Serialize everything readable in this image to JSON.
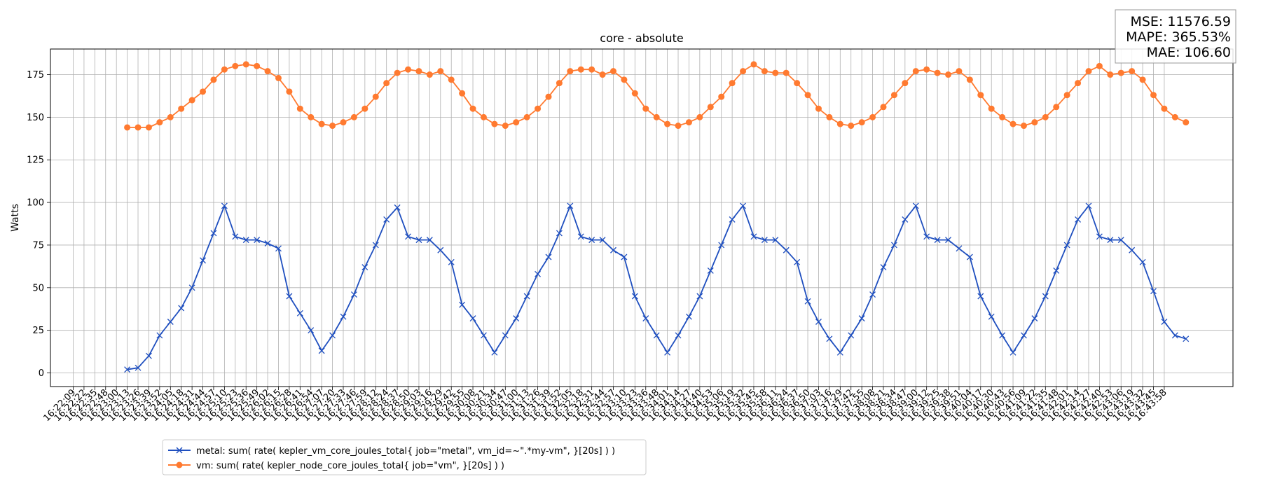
{
  "chart_data": {
    "type": "line",
    "title": "core - absolute",
    "xlabel": "",
    "ylabel": "Watts",
    "ylim": [
      -8,
      190
    ],
    "yticks": [
      0,
      25,
      50,
      75,
      100,
      125,
      150,
      175
    ],
    "grid": true,
    "legend_placement": "bottom-left, below plot",
    "x_tick_labels": [
      "16:22:09",
      "16:22:22",
      "16:22:35",
      "16:22:48",
      "16:23:00",
      "16:23:13",
      "16:23:26",
      "16:23:39",
      "16:23:52",
      "16:24:05",
      "16:24:18",
      "16:24:31",
      "16:24:44",
      "16:24:57",
      "16:25:10",
      "16:25:23",
      "16:25:36",
      "16:25:49",
      "16:26:02",
      "16:26:15",
      "16:26:28",
      "16:26:41",
      "16:26:54",
      "16:27:07",
      "16:27:20",
      "16:27:33",
      "16:27:46",
      "16:27:59",
      "16:28:12",
      "16:28:24",
      "16:28:37",
      "16:28:50",
      "16:29:03",
      "16:29:16",
      "16:29:29",
      "16:29:42",
      "16:29:55",
      "16:30:08",
      "16:30:21",
      "16:30:34",
      "16:30:47",
      "16:31:00",
      "16:31:13",
      "16:31:26",
      "16:31:39",
      "16:31:52",
      "16:32:05",
      "16:32:18",
      "16:32:31",
      "16:32:44",
      "16:32:57",
      "16:33:10",
      "16:33:23",
      "16:33:36",
      "16:33:48",
      "16:34:01",
      "16:34:14",
      "16:34:27",
      "16:34:40",
      "16:34:53",
      "16:35:06",
      "16:35:19",
      "16:35:32",
      "16:35:45",
      "16:35:58",
      "16:36:11",
      "16:36:24",
      "16:36:37",
      "16:36:50",
      "16:37:03",
      "16:37:16",
      "16:37:29",
      "16:37:42",
      "16:37:55",
      "16:38:08",
      "16:38:21",
      "16:38:34",
      "16:38:47",
      "16:39:00",
      "16:39:12",
      "16:39:25",
      "16:39:38",
      "16:39:51",
      "16:40:04",
      "16:40:17",
      "16:40:30",
      "16:40:43",
      "16:40:56",
      "16:41:09",
      "16:41:22",
      "16:41:35",
      "16:41:48",
      "16:42:01",
      "16:42:14",
      "16:42:27",
      "16:42:40",
      "16:42:53",
      "16:43:06",
      "16:43:19",
      "16:43:32",
      "16:43:45",
      "16:43:58"
    ],
    "series": [
      {
        "name": "metal: sum( rate( kepler_vm_core_joules_total{ job=\"metal\", vm_id=~\".*my-vm\", }[20s] ) )",
        "color": "#1f4fbf",
        "marker": "x",
        "points": [
          [
            5,
            2
          ],
          [
            6,
            3
          ],
          [
            7,
            10
          ],
          [
            8,
            22
          ],
          [
            9,
            30
          ],
          [
            10,
            38
          ],
          [
            11,
            50
          ],
          [
            12,
            66
          ],
          [
            13,
            82
          ],
          [
            14,
            98
          ],
          [
            15,
            80
          ],
          [
            16,
            78
          ],
          [
            17,
            78
          ],
          [
            18,
            76
          ],
          [
            19,
            73
          ],
          [
            20,
            45
          ],
          [
            21,
            35
          ],
          [
            22,
            25
          ],
          [
            23,
            13
          ],
          [
            24,
            22
          ],
          [
            25,
            33
          ],
          [
            26,
            46
          ],
          [
            27,
            62
          ],
          [
            28,
            75
          ],
          [
            29,
            90
          ],
          [
            30,
            97
          ],
          [
            31,
            80
          ],
          [
            32,
            78
          ],
          [
            33,
            78
          ],
          [
            34,
            72
          ],
          [
            35,
            65
          ],
          [
            36,
            40
          ],
          [
            37,
            32
          ],
          [
            38,
            22
          ],
          [
            39,
            12
          ],
          [
            40,
            22
          ],
          [
            41,
            32
          ],
          [
            42,
            45
          ],
          [
            43,
            58
          ],
          [
            44,
            68
          ],
          [
            45,
            82
          ],
          [
            46,
            98
          ],
          [
            47,
            80
          ],
          [
            48,
            78
          ],
          [
            49,
            78
          ],
          [
            50,
            72
          ],
          [
            51,
            68
          ],
          [
            52,
            45
          ],
          [
            53,
            32
          ],
          [
            54,
            22
          ],
          [
            55,
            12
          ],
          [
            56,
            22
          ],
          [
            57,
            33
          ],
          [
            58,
            45
          ],
          [
            59,
            60
          ],
          [
            60,
            75
          ],
          [
            61,
            90
          ],
          [
            62,
            98
          ],
          [
            63,
            80
          ],
          [
            64,
            78
          ],
          [
            65,
            78
          ],
          [
            66,
            72
          ],
          [
            67,
            65
          ],
          [
            68,
            42
          ],
          [
            69,
            30
          ],
          [
            70,
            20
          ],
          [
            71,
            12
          ],
          [
            72,
            22
          ],
          [
            73,
            32
          ],
          [
            74,
            46
          ],
          [
            75,
            62
          ],
          [
            76,
            75
          ],
          [
            77,
            90
          ],
          [
            78,
            98
          ],
          [
            79,
            80
          ],
          [
            80,
            78
          ],
          [
            81,
            78
          ],
          [
            82,
            73
          ],
          [
            83,
            68
          ],
          [
            84,
            45
          ],
          [
            85,
            33
          ],
          [
            86,
            22
          ],
          [
            87,
            12
          ],
          [
            88,
            22
          ],
          [
            89,
            32
          ],
          [
            90,
            45
          ],
          [
            91,
            60
          ],
          [
            92,
            75
          ],
          [
            93,
            90
          ],
          [
            94,
            98
          ],
          [
            95,
            80
          ],
          [
            96,
            78
          ],
          [
            97,
            78
          ],
          [
            98,
            72
          ],
          [
            99,
            65
          ],
          [
            100,
            48
          ],
          [
            101,
            30
          ],
          [
            102,
            22
          ],
          [
            103,
            20
          ]
        ]
      },
      {
        "name": "vm: sum( rate( kepler_node_core_joules_total{ job=\"vm\", }[20s] ) )",
        "color": "#ff7a30",
        "marker": "o",
        "points": [
          [
            5,
            144
          ],
          [
            6,
            144
          ],
          [
            7,
            144
          ],
          [
            8,
            147
          ],
          [
            9,
            150
          ],
          [
            10,
            155
          ],
          [
            11,
            160
          ],
          [
            12,
            165
          ],
          [
            13,
            172
          ],
          [
            14,
            178
          ],
          [
            15,
            180
          ],
          [
            16,
            181
          ],
          [
            17,
            180
          ],
          [
            18,
            177
          ],
          [
            19,
            173
          ],
          [
            20,
            165
          ],
          [
            21,
            155
          ],
          [
            22,
            150
          ],
          [
            23,
            146
          ],
          [
            24,
            145
          ],
          [
            25,
            147
          ],
          [
            26,
            150
          ],
          [
            27,
            155
          ],
          [
            28,
            162
          ],
          [
            29,
            170
          ],
          [
            30,
            176
          ],
          [
            31,
            178
          ],
          [
            32,
            177
          ],
          [
            33,
            175
          ],
          [
            34,
            177
          ],
          [
            35,
            172
          ],
          [
            36,
            164
          ],
          [
            37,
            155
          ],
          [
            38,
            150
          ],
          [
            39,
            146
          ],
          [
            40,
            145
          ],
          [
            41,
            147
          ],
          [
            42,
            150
          ],
          [
            43,
            155
          ],
          [
            44,
            162
          ],
          [
            45,
            170
          ],
          [
            46,
            177
          ],
          [
            47,
            178
          ],
          [
            48,
            178
          ],
          [
            49,
            175
          ],
          [
            50,
            177
          ],
          [
            51,
            172
          ],
          [
            52,
            164
          ],
          [
            53,
            155
          ],
          [
            54,
            150
          ],
          [
            55,
            146
          ],
          [
            56,
            145
          ],
          [
            57,
            147
          ],
          [
            58,
            150
          ],
          [
            59,
            156
          ],
          [
            60,
            162
          ],
          [
            61,
            170
          ],
          [
            62,
            177
          ],
          [
            63,
            181
          ],
          [
            64,
            177
          ],
          [
            65,
            176
          ],
          [
            66,
            176
          ],
          [
            67,
            170
          ],
          [
            68,
            163
          ],
          [
            69,
            155
          ],
          [
            70,
            150
          ],
          [
            71,
            146
          ],
          [
            72,
            145
          ],
          [
            73,
            147
          ],
          [
            74,
            150
          ],
          [
            75,
            156
          ],
          [
            76,
            163
          ],
          [
            77,
            170
          ],
          [
            78,
            177
          ],
          [
            79,
            178
          ],
          [
            80,
            176
          ],
          [
            81,
            175
          ],
          [
            82,
            177
          ],
          [
            83,
            172
          ],
          [
            84,
            163
          ],
          [
            85,
            155
          ],
          [
            86,
            150
          ],
          [
            87,
            146
          ],
          [
            88,
            145
          ],
          [
            89,
            147
          ],
          [
            90,
            150
          ],
          [
            91,
            156
          ],
          [
            92,
            163
          ],
          [
            93,
            170
          ],
          [
            94,
            177
          ],
          [
            95,
            180
          ],
          [
            96,
            175
          ],
          [
            97,
            176
          ],
          [
            98,
            177
          ],
          [
            99,
            172
          ],
          [
            100,
            163
          ],
          [
            101,
            155
          ],
          [
            102,
            150
          ],
          [
            103,
            147
          ]
        ]
      }
    ]
  },
  "stats_box": {
    "mse": "MSE: 11576.59",
    "mape": "MAPE: 365.53%",
    "mae": "MAE: 106.60"
  }
}
